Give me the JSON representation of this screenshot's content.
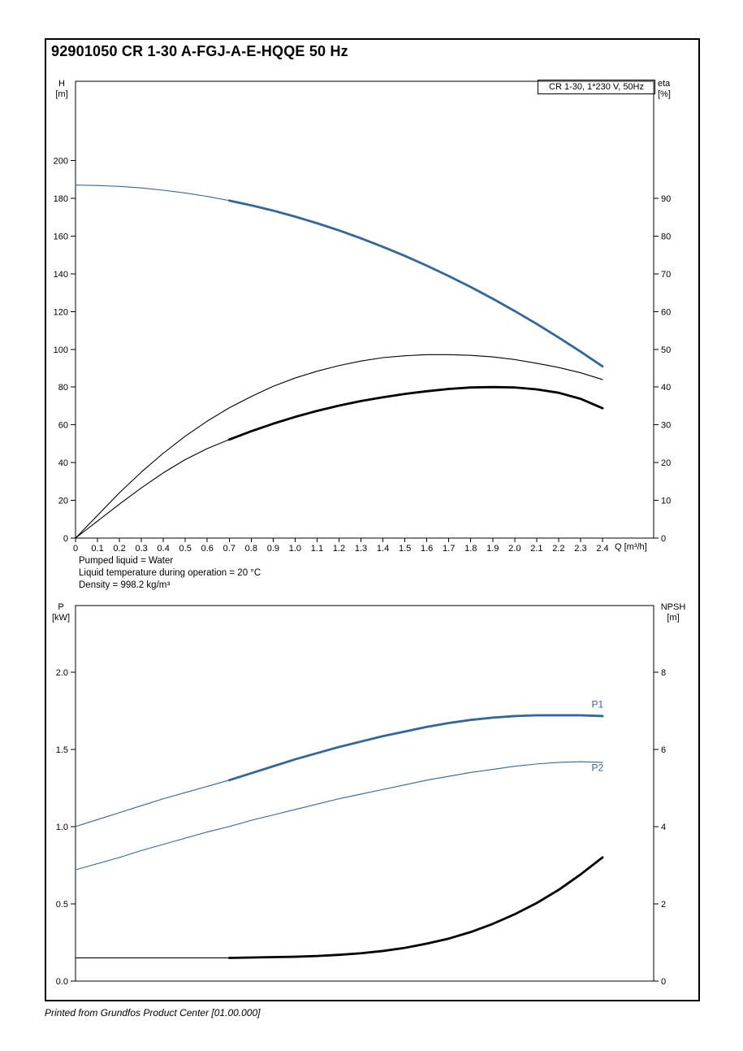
{
  "header": {
    "title": "92901050 CR 1-30 A-FGJ-A-E-HQQE 50 Hz"
  },
  "footer": {
    "text": "Printed from Grundfos Product Center [01.00.000]"
  },
  "info_lines": [
    "Pumped liquid = Water",
    "Liquid temperature during operation = 20 °C",
    "Density = 998.2 kg/m³"
  ],
  "colors": {
    "curve_blue": "#336699",
    "curve_black": "#000000"
  },
  "chart_data": [
    {
      "type": "line",
      "legend": "CR 1-30, 1*230 V, 50Hz",
      "xlabel": "Q [m³/h]",
      "ylabel_left": "H\n[m]",
      "ylabel_right": "eta\n[%]",
      "xlim": [
        0,
        2.633
      ],
      "ylim_left": [
        0,
        242
      ],
      "ylim_right": [
        0,
        121
      ],
      "x_ticks": {
        "values": [
          0,
          0.1,
          0.2,
          0.3,
          0.4,
          0.5,
          0.6,
          0.7,
          0.8,
          0.9,
          1.0,
          1.1,
          1.2,
          1.3,
          1.4,
          1.5,
          1.6,
          1.7,
          1.8,
          1.9,
          2.0,
          2.1,
          2.2,
          2.3,
          2.4
        ],
        "labels": [
          "0",
          "0.1",
          "0.2",
          "0.3",
          "0.4",
          "0.5",
          "0.6",
          "0.7",
          "0.8",
          "0.9",
          "1.0",
          "1.1",
          "1.2",
          "1.3",
          "1.4",
          "1.5",
          "1.6",
          "1.7",
          "1.8",
          "1.9",
          "2.0",
          "2.1",
          "2.2",
          "2.3",
          "2.4"
        ]
      },
      "y_ticks_left": {
        "values": [
          0,
          20,
          40,
          60,
          80,
          100,
          120,
          140,
          160,
          180,
          200
        ],
        "labels": [
          "0",
          "20",
          "40",
          "60",
          "80",
          "100",
          "120",
          "140",
          "160",
          "180",
          "200"
        ]
      },
      "y_ticks_right": {
        "values": [
          0,
          10,
          20,
          30,
          40,
          50,
          60,
          70,
          80,
          90
        ],
        "labels": [
          "0",
          "10",
          "20",
          "30",
          "40",
          "50",
          "60",
          "70",
          "80",
          "90"
        ]
      },
      "x": [
        0,
        0.1,
        0.2,
        0.3,
        0.4,
        0.5,
        0.6,
        0.7,
        0.8,
        0.9,
        1.0,
        1.1,
        1.2,
        1.3,
        1.4,
        1.5,
        1.6,
        1.7,
        1.8,
        1.9,
        2.0,
        2.1,
        2.2,
        2.3,
        2.4
      ],
      "series": [
        {
          "id": "h-curve",
          "name": "H (head curve)",
          "axis": "left",
          "color": "#336699",
          "bold_from": 0.7,
          "values": [
            187,
            186.8,
            186.3,
            185.5,
            184.3,
            182.8,
            181,
            178.8,
            176.3,
            173.5,
            170.3,
            166.8,
            163,
            158.8,
            154.3,
            149.5,
            144.3,
            138.8,
            133,
            126.8,
            120.3,
            113.5,
            106.3,
            98.8,
            91
          ]
        },
        {
          "id": "eta-pump-curve",
          "name": "eta pump",
          "axis": "right",
          "color": "#000000",
          "values": [
            0,
            6,
            12,
            17.5,
            22.5,
            27,
            31,
            34.5,
            37.5,
            40.2,
            42.4,
            44.2,
            45.7,
            46.9,
            47.8,
            48.3,
            48.6,
            48.6,
            48.4,
            48,
            47.3,
            46.3,
            45.2,
            43.8,
            42
          ]
        },
        {
          "id": "eta-total-curve",
          "name": "eta pump+motor",
          "axis": "right",
          "color": "#000000",
          "bold_from": 0.7,
          "values": [
            0,
            4.5,
            9,
            13.3,
            17.3,
            20.8,
            23.7,
            26.1,
            28.3,
            30.3,
            32.1,
            33.7,
            35.1,
            36.3,
            37.3,
            38.2,
            38.9,
            39.5,
            39.9,
            40,
            39.9,
            39.4,
            38.5,
            36.9,
            34.4
          ]
        }
      ],
      "annotations": []
    },
    {
      "type": "line",
      "legend": "",
      "xlabel": "",
      "ylabel_left": "P\n[kW]",
      "ylabel_right": "NPSH\n[m]",
      "xlim": [
        0,
        2.633
      ],
      "ylim_left": [
        0,
        2.43
      ],
      "ylim_right": [
        0,
        9.72
      ],
      "x_ticks": {
        "values": [],
        "labels": []
      },
      "y_ticks_left": {
        "values": [
          0,
          0.5,
          1,
          1.5,
          2
        ],
        "labels": [
          "0.0",
          "0.5",
          "1.0",
          "1.5",
          "2.0"
        ]
      },
      "y_ticks_right": {
        "values": [
          0,
          2,
          4,
          6,
          8
        ],
        "labels": [
          "0",
          "2",
          "4",
          "6",
          "8"
        ]
      },
      "x": [
        0,
        0.1,
        0.2,
        0.3,
        0.4,
        0.5,
        0.6,
        0.7,
        0.8,
        0.9,
        1.0,
        1.1,
        1.2,
        1.3,
        1.4,
        1.5,
        1.6,
        1.7,
        1.8,
        1.9,
        2.0,
        2.1,
        2.2,
        2.3,
        2.4
      ],
      "series": [
        {
          "id": "p1-curve",
          "name": "P1 (input power)",
          "axis": "left",
          "color": "#336699",
          "bold_from": 0.7,
          "values": [
            1,
            1.045,
            1.09,
            1.135,
            1.18,
            1.22,
            1.26,
            1.3,
            1.345,
            1.39,
            1.435,
            1.475,
            1.515,
            1.55,
            1.585,
            1.615,
            1.645,
            1.67,
            1.69,
            1.705,
            1.715,
            1.72,
            1.72,
            1.72,
            1.715
          ]
        },
        {
          "id": "p2-curve",
          "name": "P2 (shaft power)",
          "axis": "left",
          "color": "#336699",
          "values": [
            0.72,
            0.76,
            0.8,
            0.845,
            0.885,
            0.925,
            0.965,
            1,
            1.04,
            1.075,
            1.11,
            1.145,
            1.18,
            1.21,
            1.24,
            1.27,
            1.3,
            1.325,
            1.35,
            1.37,
            1.39,
            1.405,
            1.415,
            1.42,
            1.415
          ]
        },
        {
          "id": "npsh-curve",
          "name": "NPSH",
          "axis": "right",
          "color": "#000000",
          "bold_from": 0.7,
          "values": [
            0.6,
            0.6,
            0.6,
            0.6,
            0.6,
            0.6,
            0.6,
            0.6,
            0.61,
            0.62,
            0.63,
            0.65,
            0.68,
            0.72,
            0.78,
            0.86,
            0.97,
            1.1,
            1.27,
            1.48,
            1.73,
            2.02,
            2.36,
            2.76,
            3.2
          ]
        }
      ],
      "annotations": [
        {
          "text": "P1",
          "x": 2.35,
          "y": 1.77,
          "axis": "left",
          "color": "#336699"
        },
        {
          "text": "P2",
          "x": 2.35,
          "y": 1.36,
          "axis": "left",
          "color": "#336699"
        }
      ]
    }
  ]
}
